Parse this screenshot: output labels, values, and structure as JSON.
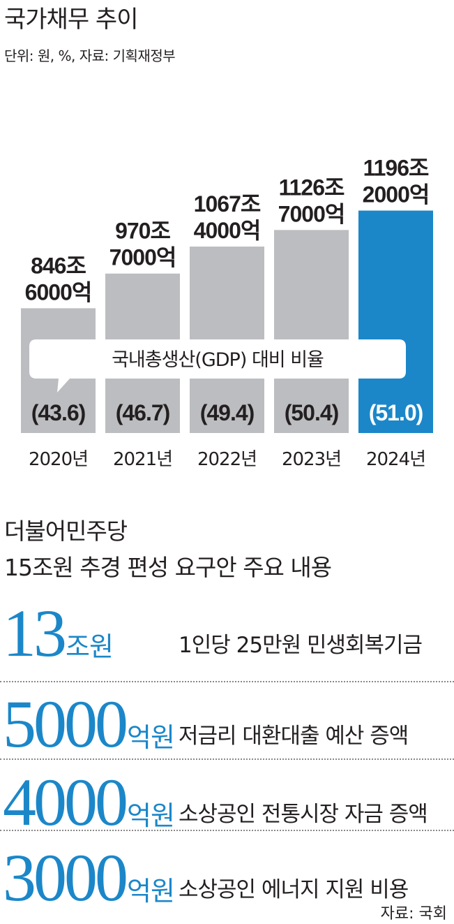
{
  "chart_title": "국가채무 추이",
  "chart_unit": "단위: 원, %, 자료: 기획재정부",
  "chart_data": {
    "type": "bar",
    "title": "국가채무 추이",
    "subtitle": "단위: 원, %, 자료: 기획재정부",
    "categories": [
      "2020년",
      "2021년",
      "2022년",
      "2023년",
      "2024년"
    ],
    "series": [
      {
        "values": [
          846.6,
          970.7,
          1067.4,
          1126.7,
          1196.2
        ]
      }
    ],
    "value_labels_line1": [
      "846조",
      "970조",
      "1067조",
      "1126조",
      "1196조"
    ],
    "value_labels_line2": [
      "6000억",
      "7000억",
      "4000억",
      "7000억",
      "2000억"
    ],
    "gdp_ratio_label": "국내총생산(GDP) 대비 비율",
    "gdp_ratio": [
      43.6,
      46.7,
      49.4,
      50.4,
      51.0
    ],
    "gdp_ratio_text": [
      "(43.6)",
      "(46.7)",
      "(49.4)",
      "(50.4)",
      "(51.0)"
    ],
    "colors": {
      "bar": "#bcbdc0",
      "highlight": "#1b87c9",
      "highlight_text": "#ffffff"
    }
  },
  "section2": {
    "title_line1": "더불어민주당",
    "title_line2": "15조원 추경 편성 요구안 주요 내용",
    "items": [
      {
        "amount": "13",
        "unit": "조원",
        "desc": "1인당 25만원 민생회복기금"
      },
      {
        "amount": "5000",
        "unit": "억원",
        "desc": "저금리 대환대출 예산 증액"
      },
      {
        "amount": "4000",
        "unit": "억원",
        "desc": "소상공인 전통시장 자금 증액"
      },
      {
        "amount": "3000",
        "unit": "억원",
        "desc": "소상공인 에너지 지원 비용"
      }
    ],
    "accent_color": "#1b87c9"
  },
  "source": "자료: 국회"
}
